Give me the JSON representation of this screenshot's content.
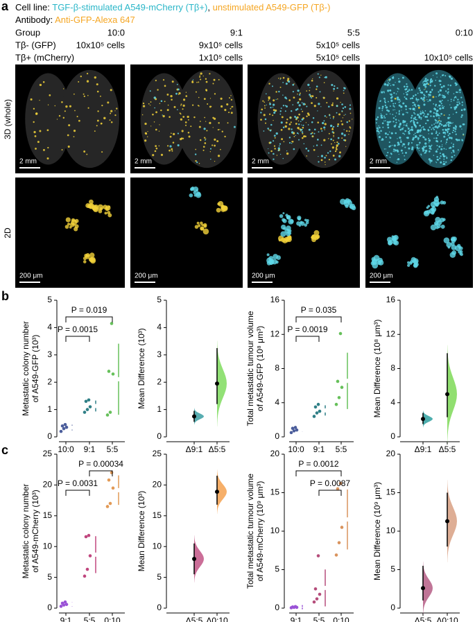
{
  "panel_labels": [
    "a",
    "b",
    "c"
  ],
  "header": {
    "cell_line_label": "Cell line:",
    "cell_line_1": "TGF-β-stimulated A549-mCherry (Tβ+)",
    "separator": ",",
    "cell_line_2": "unstimulated A549-GFP (Tβ-)",
    "antibody_label": "Antibody:",
    "antibody": "Anti-GFP-Alexa 647",
    "group_label": "Group",
    "groups": [
      "10:0",
      "9:1",
      "5:5",
      "0:10"
    ],
    "tb_minus_label": "Tβ- (GFP)",
    "tb_minus": [
      "10x10⁵ cells",
      "9x10⁵ cells",
      "5x10⁵ cells",
      null
    ],
    "tb_plus_label": "Tβ+ (mCherry)",
    "tb_plus": [
      null,
      "1x10⁵ cells",
      "5x10⁵ cells",
      "10x10⁵ cells"
    ]
  },
  "images": {
    "row_labels": [
      "3D (whole)",
      "2D"
    ],
    "scale_bars": [
      [
        "2 mm",
        "2 mm",
        "2 mm",
        "2 mm"
      ],
      [
        "200 μm",
        "200 μm",
        "200 μm",
        "200 μm"
      ]
    ]
  },
  "chart_data": [
    {
      "type": "strip",
      "ylabel": [
        "Metastatic colony number",
        "of A549-GFP (10³)"
      ],
      "categories": [
        "10:0",
        "9:1",
        "5:5"
      ],
      "values": [
        [
          0.2,
          0.3,
          0.35,
          0.4,
          0.45
        ],
        [
          0.9,
          1.0,
          1.1,
          1.3,
          1.35
        ],
        [
          0.8,
          0.9,
          2.3,
          2.4,
          4.15
        ]
      ],
      "means": [
        0.34,
        1.13,
        2.11
      ],
      "sds": [
        0.1,
        0.2,
        1.3
      ],
      "colors": [
        "#4b5d9b",
        "#2f7f86",
        "#66c05a"
      ],
      "ylim": [
        0,
        5
      ],
      "yticks": [
        0,
        1,
        2,
        3,
        4,
        5
      ],
      "brackets": [
        {
          "label": "P = 0.019",
          "span": [
            0,
            2
          ]
        },
        {
          "label": "P = 0.0015",
          "span": [
            0,
            1
          ]
        }
      ]
    },
    {
      "type": "estimation",
      "ylabel": [
        "Mean Difference (10³)"
      ],
      "categories": [
        "Δ9:1",
        "Δ5:5"
      ],
      "values": [
        0.75,
        1.95
      ],
      "ci": [
        [
          0.55,
          0.95
        ],
        [
          1.2,
          3.25
        ]
      ],
      "colors": [
        "#3b9fa3",
        "#7fdc5e"
      ],
      "ylim": [
        0,
        5
      ],
      "yticks": [
        0,
        1,
        2,
        3,
        4,
        5
      ]
    },
    {
      "type": "strip",
      "ylabel": [
        "Total metastatic tumour volume",
        "of A549-GFP (10⁸ μm³)"
      ],
      "categories": [
        "10:0",
        "9:1",
        "5:5"
      ],
      "values": [
        [
          0.5,
          0.7,
          0.8,
          1.0,
          1.1
        ],
        [
          2.4,
          2.8,
          3.0,
          3.5,
          3.8
        ],
        [
          3.8,
          4.6,
          5.8,
          6.5,
          12.1
        ]
      ],
      "means": [
        0.82,
        3.1,
        6.56
      ],
      "sds": [
        0.25,
        0.6,
        3.3
      ],
      "colors": [
        "#4b5d9b",
        "#2f7f86",
        "#66c05a"
      ],
      "ylim": [
        0,
        16
      ],
      "yticks": [
        0,
        4,
        8,
        12,
        16
      ],
      "brackets": [
        {
          "label": "P = 0.035",
          "span": [
            0,
            2
          ]
        },
        {
          "label": "P = 0.0019",
          "span": [
            0,
            1
          ]
        }
      ]
    },
    {
      "type": "estimation",
      "ylabel": [
        "Mean Difference (10⁸ μm³)"
      ],
      "categories": [
        "Δ9:1",
        "Δ5:5"
      ],
      "values": [
        2.1,
        5.0
      ],
      "ci": [
        [
          1.5,
          2.8
        ],
        [
          2.3,
          9.8
        ]
      ],
      "colors": [
        "#2fa0a0",
        "#7ed957"
      ],
      "ylim": [
        0,
        16
      ],
      "yticks": [
        0,
        4,
        8,
        12,
        16
      ]
    },
    {
      "type": "strip",
      "ylabel": [
        "Metastatic colony number",
        "of A549-mCherry (10³)"
      ],
      "categories": [
        "9:1",
        "5:5",
        "0:10"
      ],
      "values": [
        [
          0.3,
          0.5,
          0.6,
          0.8,
          1.0
        ],
        [
          5.2,
          6.3,
          8.5,
          11.6,
          11.8
        ],
        [
          16.5,
          17.0,
          19.5,
          20.8,
          22.0
        ]
      ],
      "means": [
        0.64,
        8.68,
        19.16
      ],
      "sds": [
        0.3,
        3.0,
        2.4
      ],
      "colors": [
        "#9a52d6",
        "#c0467e",
        "#e29a56"
      ],
      "ylim": [
        0,
        25
      ],
      "yticks": [
        0,
        5,
        10,
        15,
        20,
        25
      ],
      "brackets": [
        {
          "label": "P = 0.00034",
          "span": [
            1,
            2
          ]
        },
        {
          "label": "P = 0.0031",
          "span": [
            0,
            1
          ]
        }
      ]
    },
    {
      "type": "estimation",
      "ylabel": [
        "Mean Difference (10³)"
      ],
      "categories": [
        "Δ5:5",
        "Δ0:10"
      ],
      "values": [
        8.0,
        18.9
      ],
      "ci": [
        [
          5.5,
          10.5
        ],
        [
          16.8,
          21.5
        ]
      ],
      "colors": [
        "#c25586",
        "#f5a14f"
      ],
      "ylim": [
        0,
        25
      ],
      "yticks": [
        0,
        5,
        10,
        15,
        20,
        25
      ]
    },
    {
      "type": "strip",
      "ylabel": [
        "Total metastatic tumour volume",
        "of A549-mCherry (10⁹ μm³)"
      ],
      "categories": [
        "9:1",
        "5:5",
        "0:10"
      ],
      "values": [
        [
          0.05,
          0.1,
          0.1,
          0.15,
          0.2
        ],
        [
          0.8,
          1.2,
          1.8,
          2.5,
          6.8
        ],
        [
          6.9,
          8.5,
          10.5,
          15.5,
          16.2
        ]
      ],
      "means": [
        0.12,
        2.62,
        11.52
      ],
      "sds": [
        0.05,
        2.4,
        3.9
      ],
      "colors": [
        "#9a52d6",
        "#b54d7b",
        "#d9935d"
      ],
      "ylim": [
        0,
        20
      ],
      "yticks": [
        0,
        5,
        10,
        15,
        20
      ],
      "brackets": [
        {
          "label": "P = 0.0012",
          "span": [
            0,
            2
          ]
        },
        {
          "label": "P = 0.0087",
          "span": [
            1,
            2
          ]
        }
      ]
    },
    {
      "type": "estimation",
      "ylabel": [
        "Mean Difference (10⁹ μm³)"
      ],
      "categories": [
        "Δ5:5",
        "Δ0:10"
      ],
      "values": [
        2.6,
        11.3
      ],
      "ci": [
        [
          1.0,
          5.5
        ],
        [
          8.0,
          15.0
        ]
      ],
      "colors": [
        "#b55d85",
        "#d8a083"
      ],
      "ylim": [
        0,
        20
      ],
      "yticks": [
        0,
        5,
        10,
        15,
        20
      ]
    }
  ]
}
